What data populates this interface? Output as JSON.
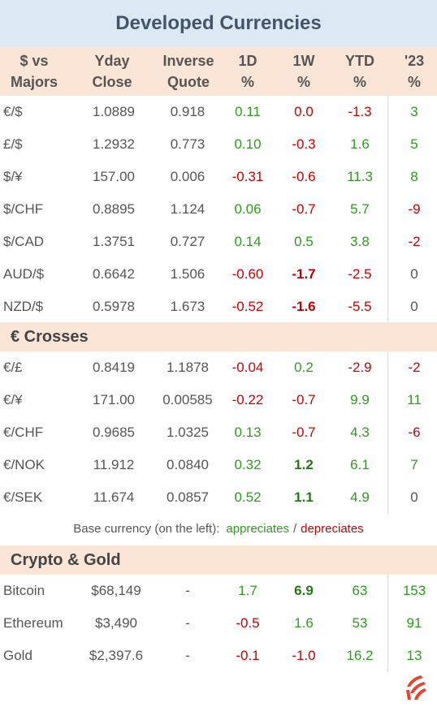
{
  "title": "Developed Currencies",
  "columns": {
    "pair": [
      "$  vs",
      "Majors"
    ],
    "yday": [
      "Yday",
      "Close"
    ],
    "inverse": [
      "Inverse",
      "Quote"
    ],
    "d1": [
      "1D",
      "%"
    ],
    "w1": [
      "1W",
      "%"
    ],
    "ytd": [
      "YTD",
      "%"
    ],
    "y23": [
      "'23",
      "%"
    ]
  },
  "majors": [
    {
      "pair": "€/$",
      "close": "1.0889",
      "inverse": "0.918",
      "d1": "0.11",
      "w1": "0.0",
      "ytd": "-1.3",
      "y23": "3"
    },
    {
      "pair": "£/$",
      "close": "1.2932",
      "inverse": "0.773",
      "d1": "0.10",
      "w1": "-0.3",
      "ytd": "1.6",
      "y23": "5"
    },
    {
      "pair": "$/¥",
      "close": "157.00",
      "inverse": "0.006",
      "d1": "-0.31",
      "w1": "-0.6",
      "ytd": "11.3",
      "y23": "8"
    },
    {
      "pair": "$/CHF",
      "close": "0.8895",
      "inverse": "1.124",
      "d1": "0.06",
      "w1": "-0.7",
      "ytd": "5.7",
      "y23": "-9"
    },
    {
      "pair": "$/CAD",
      "close": "1.3751",
      "inverse": "0.727",
      "d1": "0.14",
      "w1": "0.5",
      "ytd": "3.8",
      "y23": "-2"
    },
    {
      "pair": "AUD/$",
      "close": "0.6642",
      "inverse": "1.506",
      "d1": "-0.60",
      "w1": "-1.7",
      "ytd": "-2.5",
      "y23": "0"
    },
    {
      "pair": "NZD/$",
      "close": "0.5978",
      "inverse": "1.673",
      "d1": "-0.52",
      "w1": "-1.6",
      "ytd": "-5.5",
      "y23": "0"
    }
  ],
  "crosses_title": "€ Crosses",
  "crosses": [
    {
      "pair": "€/£",
      "close": "0.8419",
      "inverse": "1.1878",
      "d1": "-0.04",
      "w1": "0.2",
      "ytd": "-2.9",
      "y23": "-2"
    },
    {
      "pair": "€/¥",
      "close": "171.00",
      "inverse": "0.00585",
      "d1": "-0.22",
      "w1": "-0.7",
      "ytd": "9.9",
      "y23": "11"
    },
    {
      "pair": "€/CHF",
      "close": "0.9685",
      "inverse": "1.0325",
      "d1": "0.13",
      "w1": "-0.7",
      "ytd": "4.3",
      "y23": "-6"
    },
    {
      "pair": "€/NOK",
      "close": "11.912",
      "inverse": "0.0840",
      "d1": "0.32",
      "w1": "1.2",
      "ytd": "6.1",
      "y23": "7"
    },
    {
      "pair": "€/SEK",
      "close": "11.674",
      "inverse": "0.0857",
      "d1": "0.52",
      "w1": "1.1",
      "ytd": "4.9",
      "y23": "0"
    }
  ],
  "legend": {
    "text": "Base currency (on the left):",
    "appreciates": "appreciates",
    "separator": "/",
    "depreciates": "depreciates"
  },
  "crypto_title": "Crypto & Gold",
  "crypto": [
    {
      "pair": "Bitcoin",
      "close": "$68,149",
      "inverse": "-",
      "d1": "1.7",
      "w1": "6.9",
      "ytd": "63",
      "y23": "153"
    },
    {
      "pair": "Ethereum",
      "close": "$3,490",
      "inverse": "-",
      "d1": "-0.5",
      "w1": "1.6",
      "ytd": "53",
      "y23": "91"
    },
    {
      "pair": "Gold",
      "close": "$2,397.6",
      "inverse": "-",
      "d1": "-0.1",
      "w1": "-1.0",
      "ytd": "16.2",
      "y23": "13"
    }
  ],
  "colors": {
    "positive": "#2e9a1e",
    "negative": "#cc0000",
    "header_bg": "#fbe5d6",
    "title_bg": "#dce9f5",
    "logo": "#e8432e"
  },
  "bold_cells": {
    "majors": [
      [
        5,
        "w1"
      ],
      [
        6,
        "w1"
      ]
    ],
    "crosses": [
      [
        3,
        "w1"
      ],
      [
        4,
        "w1"
      ]
    ],
    "crypto": [
      [
        0,
        "w1"
      ]
    ]
  },
  "logo_icon": "flame-logo-icon"
}
